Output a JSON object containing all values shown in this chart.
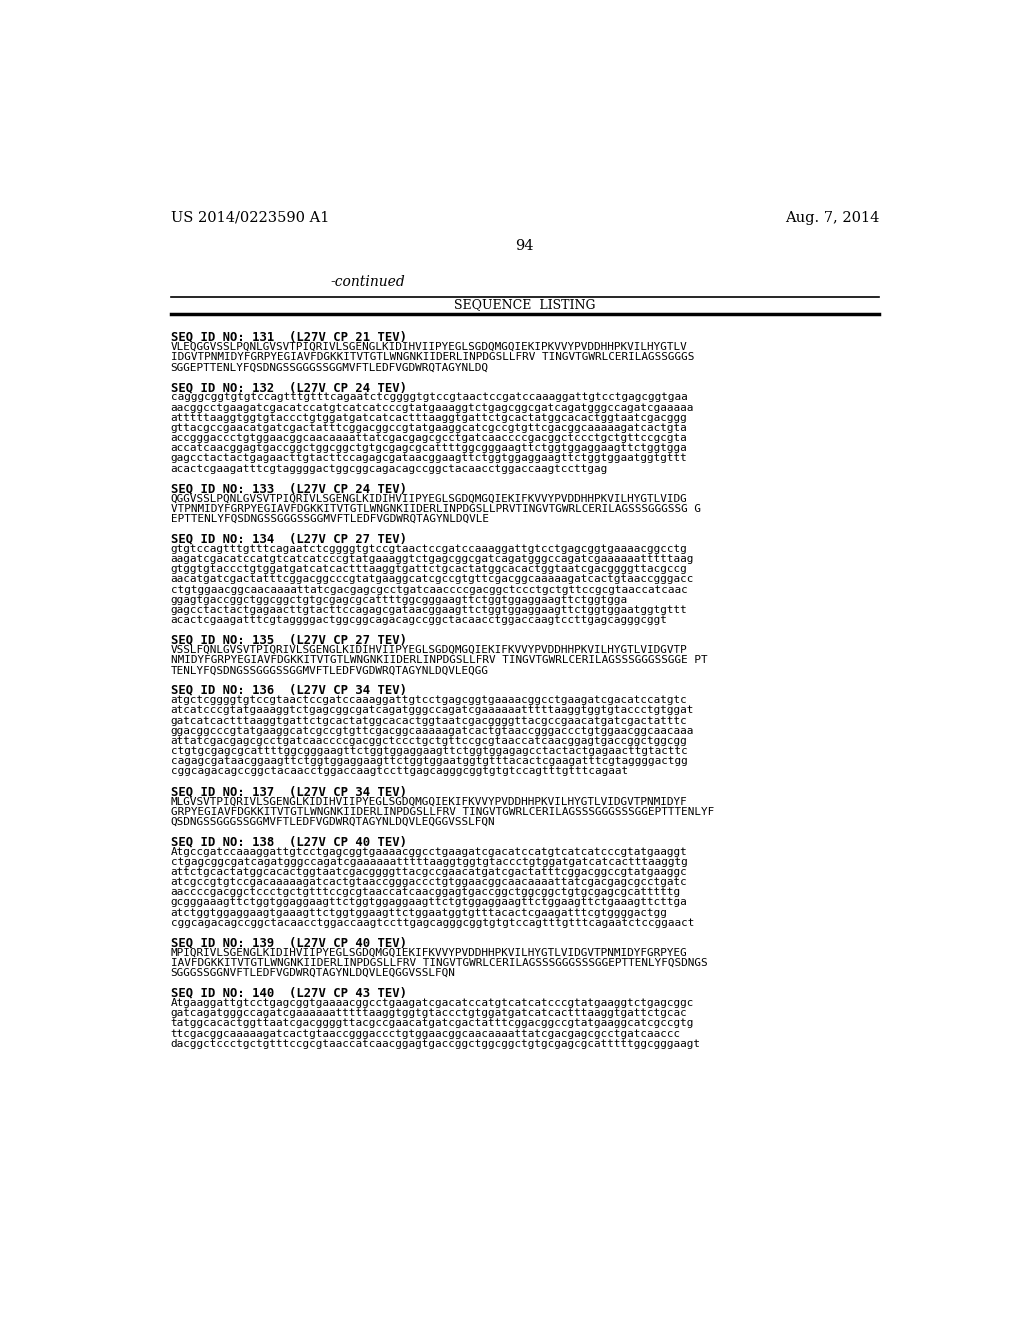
{
  "background_color": "#ffffff",
  "header_left": "US 2014/0223590 A1",
  "header_right": "Aug. 7, 2014",
  "page_number": "94",
  "section_title": "SEQUENCE  LISTING",
  "continued_text": "-continued",
  "sequences": [
    {
      "id": "SEQ ID NO: 131  (L27V CP 21 TEV)",
      "type": "protein",
      "lines": [
        "VLEQGGVSSLPQNLGVSVTPIQRIVLSGENGLKIDIHVIIPYEGLSGDQMGQIEKIPKVVYPVDDHHPKVILHYGTLV",
        "IDGVTPNMIDYFGRPYEGIAVFDGKKITVTGTLWNGNKIIDERLINPDGSLLFRV TINGVTGWRLCERILAGSSGGGS",
        "SGGEPTTENLYFQSDNGSSGGGSSGGMVFTLEDFVGDWRQTAGYNLDQ"
      ]
    },
    {
      "id": "SEQ ID NO: 132  (L27V CP 24 TEV)",
      "type": "dna",
      "lines": [
        "cagggcggtgtgtccagtttgtttcagaatctcggggtgtccgtaactccgatccaaaggattgtcctgagcggtgaa",
        "aacggcctgaagatcgacatccatgtcatcatcccgtatgaaaggtctgagcggcgatcagatgggccagatcgaaaaa",
        "atttttaaggtggtgtaccctgtggatgatcatcactttaaggtgattctgcactatggcacactggtaatcgacggg",
        "gttacgccgaacatgatcgactatttcggacggccgtatgaaggcatcgccgtgttcgacggcaaaaagatcactgta",
        "accgggaccctgtggaacggcaacaaaattatcgacgagcgcctgatcaaccccgacggctccctgctgttccgcgta",
        "accatcaacggagtgaccggctggcggctgtgcgagcgcattttggcgggaagttctggtggaggaagttctggtgga",
        "gagcctactactgagaacttgtacttccagagcgataacggaagttctggtggaggaagttctggtggaatggtgttt",
        "acactcgaagatttcgtaggggactggcggcagacagccggctacaacctggaccaagtccttgag"
      ]
    },
    {
      "id": "SEQ ID NO: 133  (L27V CP 24 TEV)",
      "type": "protein",
      "lines": [
        "QGGVSSLPQNLGVSVTPIQRIVLSGENGLKIDIHVIIPYEGLSGDQMGQIEKIFKVVYPVDDHHPKVILHYGTLVIDG",
        "VTPNMIDYFGRPYEGIAVFDGKKITVTGTLWNGNKIIDERLINPDGSLLPRVTINGVTGWRLCERILAGSSSGGGSSG G",
        "EPTTENLYFQSDNGSSGGGSSGGMVFTLEDFVGDWRQTAGYNLDQVLE"
      ]
    },
    {
      "id": "SEQ ID NO: 134  (L27V CP 27 TEV)",
      "type": "dna",
      "lines": [
        "gtgtccagtttgtttcagaatctcggggtgtccgtaactccgatccaaaggattgtcctgagcggtgaaaacggcctg",
        "aagatcgacatccatgtcatcatcccgtatgaaaggtctgagcggcgatcagatgggccagatcgaaaaaatttttaag",
        "gtggtgtaccctgtggatgatcatcactttaaggtgattctgcactatggcacactggtaatcgacggggttacgccg",
        "aacatgatcgactatttcggacggcccgtatgaaggcatcgccgtgttcgacggcaaaaagatcactgtaaccgggacc",
        "ctgtggaacggcaacaaaattatcgacgagcgcctgatcaaccccgacggctccctgctgttccgcgtaaccatcaac",
        "ggagtgaccggctggcggctgtgcgagcgcattttggcgggaagttctggtggaggaagttctggtgga",
        "gagcctactactgagaacttgtacttccagagcgataacggaagttctggtggaggaagttctggtggaatggtgttt",
        "acactcgaagatttcgtaggggactggcggcagacagccggctacaacctggaccaagtccttgagcagggcggt"
      ]
    },
    {
      "id": "SEQ ID NO: 135  (L27V CP 27 TEV)",
      "type": "protein",
      "lines": [
        "VSSLFQNLGVSVTPIQRIVLSGENGLKIDIHVIIPYEGLSGDQMGQIEKIFKVVYPVDDHHPKVILHYGTLVIDGVTP",
        "NMIDYFGRPYEGIAVFDGKKITVTGTLWNGNKIIDERLINPDGSLLFRV TINGVTGWRLCERILAGSSSGGGSSGGE PT",
        "TENLYFQSDNGSSGGGSSGGMVFTLEDFVGDWRQTAGYNLDQVLEQGG"
      ]
    },
    {
      "id": "SEQ ID NO: 136  (L27V CP 34 TEV)",
      "type": "dna",
      "lines": [
        "atgctcggggtgtccgtaactccgatccaaaggattgtcctgagcggtgaaaacggcctgaagatcgacatccatgtc",
        "atcatcccgtatgaaaggtctgagcggcgatcagatgggccagatcgaaaaaatttttaaggtggtgtaccctgtggat",
        "gatcatcactttaaggtgattctgcactatggcacactggtaatcgacggggttacgccgaacatgatcgactatttc",
        "ggacggcccgtatgaaggcatcgccgtgttcgacggcaaaaagatcactgtaaccgggaccctgtggaacggcaacaaa",
        "attatcgacgagcgcctgatcaaccccgacggctccctgctgttccgcgtaaccatcaacggagtgaccggctggcgg",
        "ctgtgcgagcgcattttggcgggaagttctggtggaggaagttctggtggagagcctactactgagaacttgtacttc",
        "cagagcgataacggaagttctggtggaggaagttctggtggaatggtgtttacactcgaagatttcgtaggggactgg",
        "cggcagacagccggctacaacctggaccaagtccttgagcagggcggtgtgtccagtttgtttcagaat"
      ]
    },
    {
      "id": "SEQ ID NO: 137  (L27V CP 34 TEV)",
      "type": "protein",
      "lines": [
        "MLGVSVTPIQRIVLSGENGLKIDIHVIIPYEGLSGDQMGQIEKIFKVVYPVDDHHPKVILHYGTLVIDGVTPNMIDYF",
        "GRPYEGIAVFDGKKITVTGTLWNGNKIIDERLINPDGSLLFRV TINGVTGWRLCERILAGSSSGGGSSSGGEPTTTENLYF",
        "QSDNGSSGGGSSGGMVFTLEDFVGDWRQTAGYNLDQVLEQGGVSSLFQN"
      ]
    },
    {
      "id": "SEQ ID NO: 138  (L27V CP 40 TEV)",
      "type": "dna",
      "lines": [
        "Atgccgatccaaaggattgtcctgagcggtgaaaacggcctgaagatcgacatccatgtcatcatcccgtatgaaggt",
        "ctgagcggcgatcagatgggccagatcgaaaaaatttttaaggtggtgtaccctgtggatgatcatcactttaaggtg",
        "attctgcactatggcacactggtaatcgacggggttacgccgaacatgatcgactatttcggacggccgtatgaaggc",
        "atcgccgtgtccgacaaaaagatcactgtaaccgggaccctgtggaacggcaacaaaattatcgacgagcgcctgatc",
        "aaccccgacggctccctgctgtttccgcgtaaccatcaacggagtgaccggctggcggctgtgcgagcgcatttttg",
        "gcgggaaagttctggtggaggaagttctggtggaggaagttctgtggaggaagttctggaagttctgaaagttcttga",
        "atctggtggaggaagtgaaagttctggtggaagttctggaatggtgtttacactcgaagatttcgtggggactgg",
        "cggcagacagccggctacaacctggaccaagtccttgagcagggcggtgtgtccagtttgtttcagaatctccggaact"
      ]
    },
    {
      "id": "SEQ ID NO: 139  (L27V CP 40 TEV)",
      "type": "protein",
      "lines": [
        "MPIQRIVLSGENGLKIDIHVIIPYEGLSGDQMGQIEKIFKVVYPVDDHHPKVILHYGTLVIDGVTPNMIDYFGRPYEG",
        "IAVFDGKKITVTGTLWNGNKIIDERLINPDGSLLFRV TINGVTGWRLCERILAGSSSGGGSSSGGEPTTENLYFQSDNGS",
        "SGGGSSGGNVFTLEDFVGDWRQTAGYNLDQVLEQGGVSSLFQN"
      ]
    },
    {
      "id": "SEQ ID NO: 140  (L27V CP 43 TEV)",
      "type": "dna",
      "lines": [
        "Atgaaggattgtcctgagcggtgaaaacggcctgaagatcgacatccatgtcatcatcccgtatgaaggtctgagcggc",
        "gatcagatgggccagatcgaaaaaatttttaaggtggtgtaccctgtggatgatcatcactttaaggtgattctgcac",
        "tatggcacactggttaatcgacggggttacgccgaacatgatcgactatttcggacggccgtatgaaggcatcgccgtg",
        "ttcgacggcaaaaagatcactgtaaccgggaccctgtggaacggcaacaaaattatcgacgagcgcctgatcaaccc",
        "dacggctccctgctgtttccgcgtaaccatcaacggagtgaccggctggcggctgtgcgagcgcatttttggcgggaagt"
      ]
    }
  ]
}
